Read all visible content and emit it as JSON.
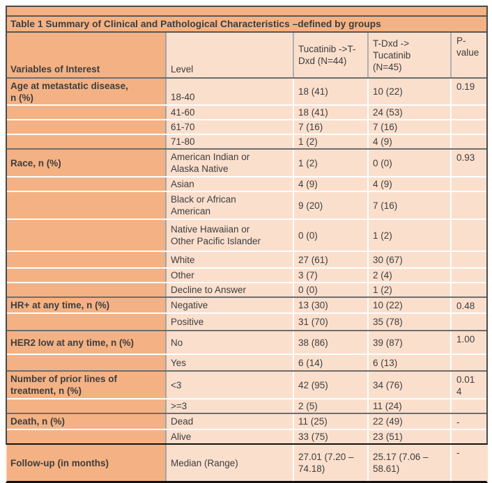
{
  "colors": {
    "accent_orange": "#f4b284",
    "cell_light": "#fbdfcd",
    "text": "#3d3d3d",
    "group_separator": "#6d6d6d",
    "row_separator": "#ffffff",
    "outer_border": "#4a4a4a",
    "bottom_line": "#111111"
  },
  "table": {
    "title": "Table 1 Summary of Clinical and Pathological Characteristics –defined by groups",
    "header": {
      "variable": "Variables of Interest",
      "level": "Level",
      "arm1": "Tucatinib ->T-\nDxd (N=44)",
      "arm2": "T-Dxd ->\nTucatinib\n(N=45)",
      "p": "P-\nvalue"
    },
    "rows": [
      {
        "variable": "Age at metastatic disease,\nn (%)",
        "level": "18-40",
        "arm1": "18 (41)",
        "arm2": "10 (22)",
        "p": "0.19",
        "group_start": true
      },
      {
        "variable": "",
        "level": "41-60",
        "arm1": "18 (41)",
        "arm2": "24 (53)",
        "p": "",
        "group_start": false
      },
      {
        "variable": "",
        "level": "61-70",
        "arm1": "7 (16)",
        "arm2": "7 (16)",
        "p": "",
        "group_start": false
      },
      {
        "variable": "",
        "level": "71-80",
        "arm1": "1 (2)",
        "arm2": "4 (9)",
        "p": "",
        "group_start": false
      },
      {
        "variable": "Race, n (%)",
        "level": "American Indian or\nAlaska Native",
        "arm1": "1 (2)",
        "arm2": "0 (0)",
        "p": "0.93",
        "group_start": true
      },
      {
        "variable": "",
        "level": "Asian",
        "arm1": "4 (9)",
        "arm2": "4 (9)",
        "p": "",
        "group_start": false
      },
      {
        "variable": "",
        "level": "Black or African\nAmerican",
        "arm1": "9 (20)",
        "arm2": "7 (16)",
        "p": "",
        "group_start": false
      },
      {
        "variable": "",
        "level": "Native Hawaiian or\nOther Pacific Islander",
        "arm1": "0 (0)",
        "arm2": "1 (2)",
        "p": "",
        "group_start": false
      },
      {
        "variable": "",
        "level": "White",
        "arm1": "27 (61)",
        "arm2": "30 (67)",
        "p": "",
        "group_start": false
      },
      {
        "variable": "",
        "level": "Other",
        "arm1": "3 (7)",
        "arm2": "2 (4)",
        "p": "",
        "group_start": false
      },
      {
        "variable": "",
        "level": "Decline to Answer",
        "arm1": "0 (0)",
        "arm2": "1 (2)",
        "p": "",
        "group_start": false
      },
      {
        "variable": "HR+ at any time, n (%)",
        "level": "Negative",
        "arm1": "13 (30)",
        "arm2": "10 (22)",
        "p": "0.48",
        "group_start": true
      },
      {
        "variable": "",
        "level": "Positive",
        "arm1": "31 (70)",
        "arm2": "35 (78)",
        "p": "",
        "group_start": false
      },
      {
        "variable": "HER2 low at any time, n (%)",
        "level": "No",
        "arm1": "38 (86)",
        "arm2": "39 (87)",
        "p": "1.00",
        "group_start": true
      },
      {
        "variable": "",
        "level": "Yes",
        "arm1": "6 (14)",
        "arm2": "6 (13)",
        "p": "",
        "group_start": false
      },
      {
        "variable": "Number of prior lines of\ntreatment, n (%)",
        "level": "<3",
        "arm1": "42 (95)",
        "arm2": "34 (76)",
        "p": "0.01\n4",
        "group_start": true
      },
      {
        "variable": "",
        "level": ">=3",
        "arm1": "2 (5)",
        "arm2": "11 (24)",
        "p": "",
        "group_start": false
      },
      {
        "variable": "Death, n (%)",
        "level": "Dead",
        "arm1": "11 (25)",
        "arm2": "22 (49)",
        "p": "-",
        "group_start": true
      },
      {
        "variable": "",
        "level": "Alive",
        "arm1": "33 (75)",
        "arm2": "23 (51)",
        "p": "",
        "group_start": false
      }
    ],
    "followup": {
      "variable": "Follow-up (in months)",
      "level": "Median (Range)",
      "arm1": "27.01 (7.20 –\n74.18)",
      "arm2": "25.17 (7.06 –\n58.61)",
      "p": "-"
    }
  }
}
